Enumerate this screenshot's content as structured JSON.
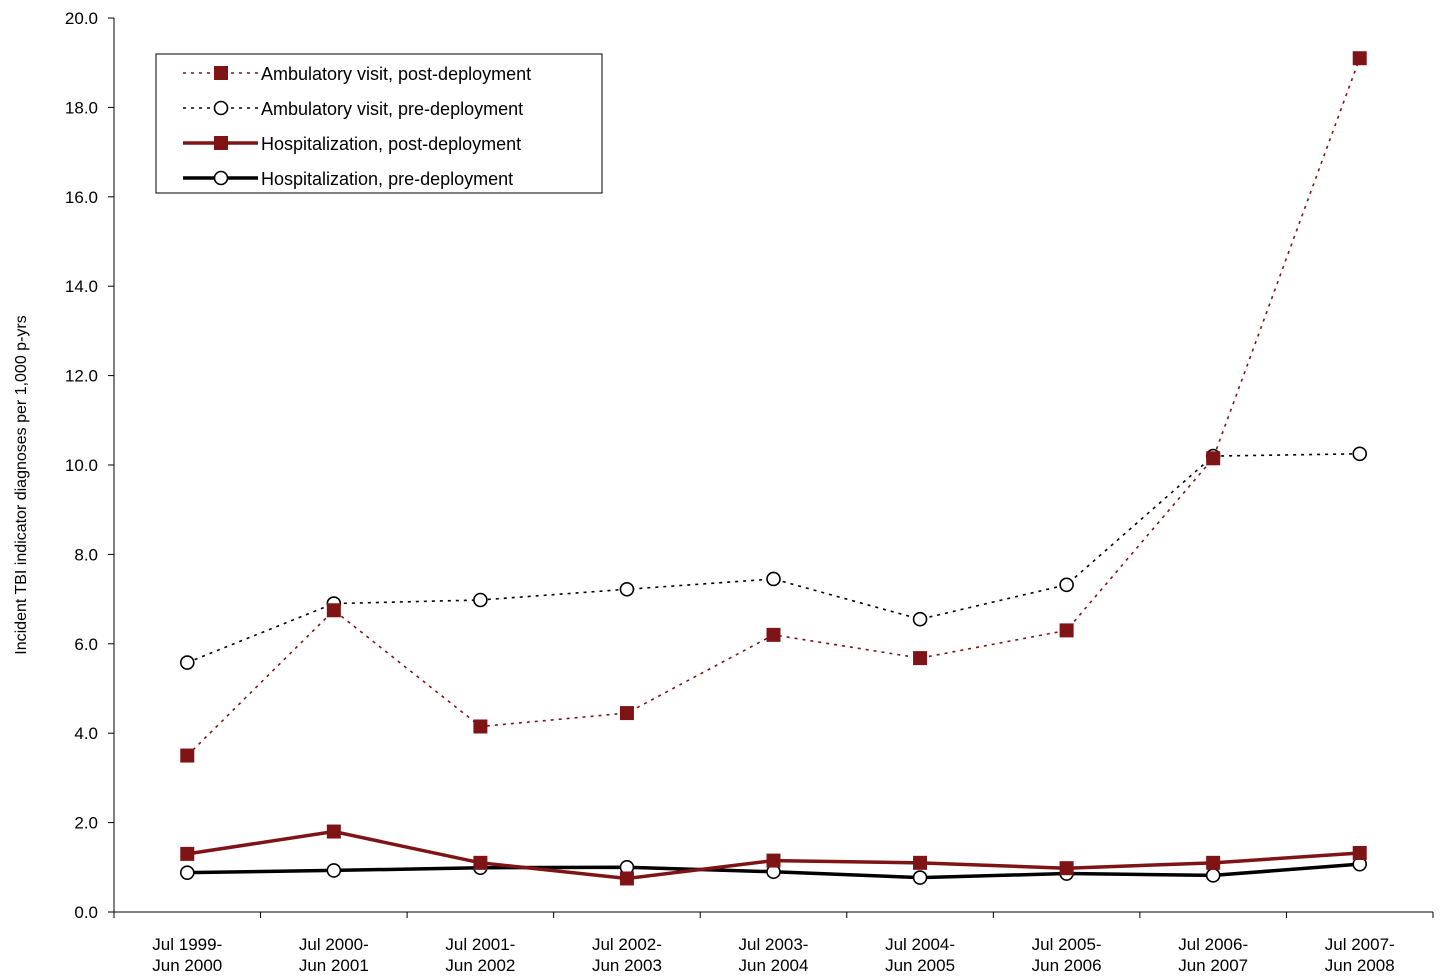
{
  "chart_data": {
    "type": "line",
    "ylabel": "Incident TBI indicator diagnoses per 1,000 p-yrs",
    "ylim": [
      0,
      20
    ],
    "y_tick_labels": [
      "0.0",
      "2.0",
      "4.0",
      "6.0",
      "8.0",
      "10.0",
      "12.0",
      "14.0",
      "16.0",
      "18.0",
      "20.0"
    ],
    "categories": [
      [
        "Jul 1999-",
        "Jun 2000"
      ],
      [
        "Jul 2000-",
        "Jun 2001"
      ],
      [
        "Jul 2001-",
        "Jun 2002"
      ],
      [
        "Jul 2002-",
        "Jun 2003"
      ],
      [
        "Jul 2003-",
        "Jun 2004"
      ],
      [
        "Jul 2004-",
        "Jun 2005"
      ],
      [
        "Jul 2005-",
        "Jun 2006"
      ],
      [
        "Jul 2006-",
        "Jun 2007"
      ],
      [
        "Jul 2007-",
        "Jun 2008"
      ]
    ],
    "legend_position": "top-left",
    "grid": false,
    "series": [
      {
        "name": "Ambulatory visit, post-deployment",
        "values": [
          3.5,
          6.75,
          4.15,
          4.45,
          6.2,
          5.68,
          6.3,
          10.15,
          19.1
        ],
        "color": "#7f1416",
        "line": "dotted",
        "marker": "filled-square"
      },
      {
        "name": "Ambulatory visit, pre-deployment",
        "values": [
          5.58,
          6.9,
          6.98,
          7.22,
          7.45,
          6.55,
          7.32,
          10.2,
          10.25
        ],
        "color": "#000000",
        "line": "dotted",
        "marker": "open-circle"
      },
      {
        "name": "Hospitalization, post-deployment",
        "values": [
          1.3,
          1.8,
          1.1,
          0.75,
          1.15,
          1.1,
          0.98,
          1.1,
          1.32
        ],
        "color": "#7f1416",
        "line": "solid",
        "marker": "filled-square"
      },
      {
        "name": "Hospitalization, pre-deployment",
        "values": [
          0.88,
          0.93,
          0.99,
          1.0,
          0.9,
          0.77,
          0.86,
          0.82,
          1.07
        ],
        "color": "#000000",
        "line": "solid",
        "marker": "open-circle"
      }
    ]
  }
}
